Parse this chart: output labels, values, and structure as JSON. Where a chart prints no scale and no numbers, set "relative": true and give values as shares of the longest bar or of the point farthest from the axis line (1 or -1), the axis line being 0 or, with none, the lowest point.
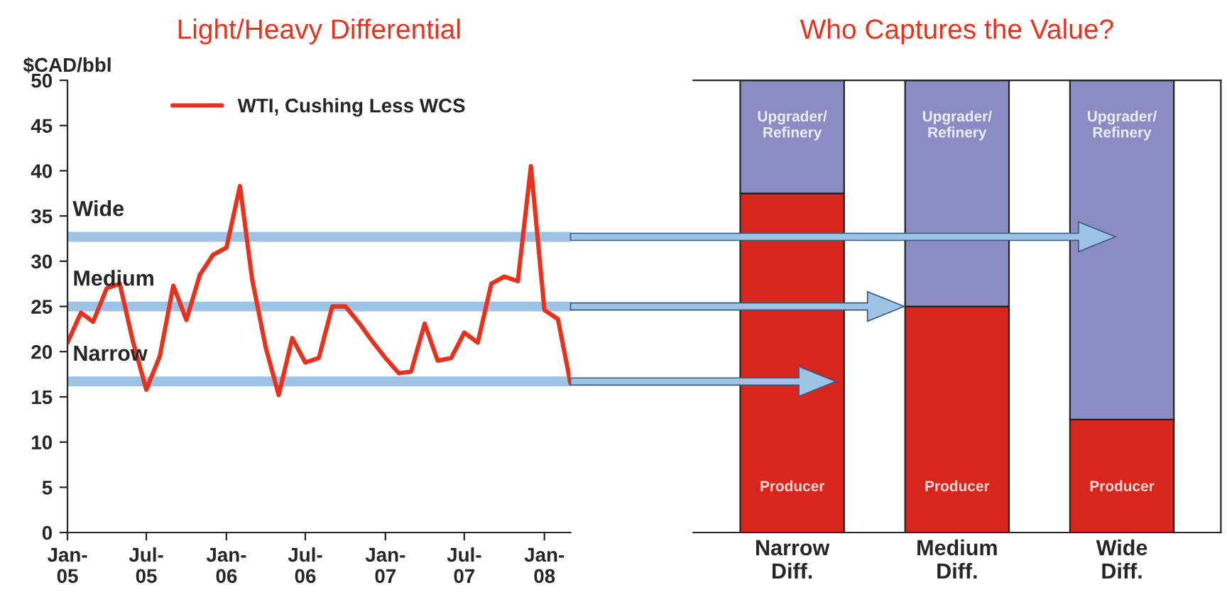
{
  "chart_data": [
    {
      "type": "line",
      "title": "Light/Heavy Differential",
      "ylabel": "$CAD/bbl",
      "x": [
        "2005-01",
        "2005-02",
        "2005-03",
        "2005-04",
        "2005-05",
        "2005-06",
        "2005-07",
        "2005-08",
        "2005-09",
        "2005-10",
        "2005-11",
        "2005-12",
        "2006-01",
        "2006-02",
        "2006-03",
        "2006-04",
        "2006-05",
        "2006-06",
        "2006-07",
        "2006-08",
        "2006-09",
        "2006-10",
        "2006-11",
        "2006-12",
        "2007-01",
        "2007-02",
        "2007-03",
        "2007-04",
        "2007-05",
        "2007-06",
        "2007-07",
        "2007-08",
        "2007-09",
        "2007-10",
        "2007-11",
        "2007-12",
        "2008-01",
        "2008-02",
        "2008-03"
      ],
      "series": [
        {
          "name": "WTI, Cushing Less WCS",
          "color": "#e8321e",
          "values": [
            21,
            24.3,
            23.3,
            27,
            27.5,
            21,
            15.8,
            19.5,
            27.3,
            23.5,
            28.5,
            30.7,
            31.5,
            38.3,
            28,
            20.5,
            15.2,
            21.5,
            18.8,
            19.3,
            25,
            25,
            23.2,
            21.2,
            19.3,
            17.6,
            17.8,
            23.1,
            19,
            19.3,
            22.1,
            21,
            27.5,
            28.3,
            27.8,
            40.5,
            24.6,
            23.6,
            16.5
          ]
        }
      ],
      "xlim": [
        "2005-01",
        "2008-03"
      ],
      "xticks": [
        {
          "value": "2005-01",
          "label": "Jan-\n05"
        },
        {
          "value": "2005-07",
          "label": "Jul-\n05"
        },
        {
          "value": "2006-01",
          "label": "Jan-\n06"
        },
        {
          "value": "2006-07",
          "label": "Jul-\n06"
        },
        {
          "value": "2007-01",
          "label": "Jan-\n07"
        },
        {
          "value": "2007-07",
          "label": "Jul-\n07"
        },
        {
          "value": "2008-01",
          "label": "Jan-\n08"
        }
      ],
      "ylim": [
        0,
        50
      ],
      "yticks": [
        0,
        5,
        10,
        15,
        20,
        25,
        30,
        35,
        40,
        45,
        50
      ],
      "ref_lines": [
        {
          "axis": "y",
          "value": 32.7,
          "label": "Wide",
          "color": "#9dc3e6"
        },
        {
          "axis": "y",
          "value": 25,
          "label": "Medium",
          "color": "#9dc3e6"
        },
        {
          "axis": "y",
          "value": 16.7,
          "label": "Narrow",
          "color": "#9dc3e6"
        }
      ],
      "legend": "top",
      "grid": false
    },
    {
      "type": "bar",
      "title": "Who Captures the Value?",
      "stacked": true,
      "relative": true,
      "categories": [
        "Narrow\nDiff.",
        "Medium\nDiff.",
        "Wide\nDiff."
      ],
      "series": [
        {
          "name": "Producer",
          "color": "#d8261c",
          "values": [
            0.75,
            0.5,
            0.25
          ]
        },
        {
          "name": "Upgrader/\nRefinery",
          "color": "#8c8cc4",
          "values": [
            0.25,
            0.5,
            0.75
          ]
        }
      ],
      "legend": false,
      "grid": false
    }
  ]
}
